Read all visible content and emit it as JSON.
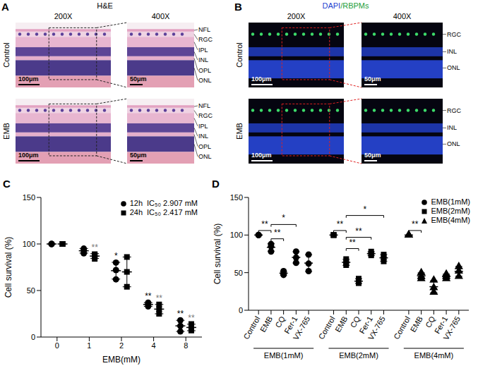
{
  "panels": [
    {
      "letter": "A",
      "title": "H&E",
      "magnifications": [
        "200X",
        "400X"
      ],
      "rows": [
        "Control",
        "EMB"
      ],
      "scale_bars": [
        "100μm",
        "50μm"
      ],
      "layers": [
        "NFL",
        "RGC",
        "IPL",
        "INL",
        "OPL",
        "ONL"
      ]
    },
    {
      "letter": "B",
      "title": "DAPI/RBPMs",
      "magnifications": [
        "200X",
        "400X"
      ],
      "rows": [
        "Control",
        "EMB"
      ],
      "scale_bars": [
        "100μm",
        "50μm"
      ],
      "layers": [
        "RGC",
        "INL",
        "ONL"
      ]
    }
  ],
  "chart_data": [
    {
      "letter": "C",
      "type": "scatter",
      "x_label": "EMB(mM)",
      "y_label": "Cell survival (%)",
      "categories": [
        "0",
        "1",
        "2",
        "4",
        "8"
      ],
      "ylim": [
        0,
        150
      ],
      "yticks": [
        0,
        50,
        100,
        150
      ],
      "legend": "top-right",
      "series": [
        {
          "name": "12h",
          "label": "IC₅₀ 2.907 mM",
          "marker": "circle",
          "color": "#000000",
          "values": [
            [
              100,
              100,
              100
            ],
            [
              95,
              90,
              93
            ],
            [
              80,
              72,
              62
            ],
            [
              37,
              35,
              33
            ],
            [
              18,
              12,
              6
            ]
          ],
          "mean": [
            100,
            92.7,
            71.3,
            35,
            12
          ],
          "sd": [
            0,
            2.5,
            9,
            2,
            6
          ]
        },
        {
          "name": "24h",
          "label": "IC₅₀ 2.417 mM",
          "marker": "square",
          "color": "#000000",
          "values": [
            [
              100,
              100,
              100
            ],
            [
              89,
              84,
              88
            ],
            [
              86,
              70,
              54
            ],
            [
              35,
              30,
              25
            ],
            [
              14,
              10,
              7
            ]
          ],
          "mean": [
            100,
            87,
            70,
            30,
            10.3
          ],
          "sd": [
            0,
            2.6,
            16,
            5,
            3.5
          ]
        }
      ],
      "significance": [
        {
          "category": "1",
          "series": "24h",
          "label": "**"
        },
        {
          "category": "2",
          "series": "12h",
          "label": "*"
        },
        {
          "category": "4",
          "series": "12h",
          "label": "**"
        },
        {
          "category": "4",
          "series": "24h",
          "label": "**"
        },
        {
          "category": "8",
          "series": "12h",
          "label": "**"
        },
        {
          "category": "8",
          "series": "24h",
          "label": "**"
        }
      ]
    },
    {
      "letter": "D",
      "type": "scatter",
      "y_label": "Cell survival (%)",
      "categories": [
        "Control",
        "EMB",
        "CQ",
        "Fer-1",
        "VX-765"
      ],
      "ylim": [
        0,
        150
      ],
      "yticks": [
        0,
        50,
        100,
        150
      ],
      "legend": "top-right",
      "series": [
        {
          "name": "EMB(1mM)",
          "marker": "circle",
          "color": "#000000",
          "values": [
            [
              100,
              100,
              100
            ],
            [
              88,
              85,
              78
            ],
            [
              52,
              49,
              47
            ],
            [
              78,
              70,
              63
            ],
            [
              74,
              62,
              52
            ]
          ],
          "mean": [
            100,
            83.7,
            49.3,
            70.3,
            62.7
          ],
          "sd": [
            0,
            5.1,
            2.5,
            7.5,
            11
          ]
        },
        {
          "name": "EMB(2mM)",
          "marker": "square",
          "color": "#000000",
          "values": [
            [
              100,
              100,
              100
            ],
            [
              68,
              63,
              60
            ],
            [
              42,
              38,
              36
            ],
            [
              78,
              75,
              73
            ],
            [
              74,
              70,
              65
            ]
          ],
          "mean": [
            100,
            63.7,
            38.7,
            75.3,
            69.7
          ],
          "sd": [
            0,
            4,
            3.1,
            2.5,
            4.5
          ]
        },
        {
          "name": "EMB(4mM)",
          "marker": "triangle",
          "color": "#000000",
          "values": [
            [
              100,
              100,
              100
            ],
            [
              50,
              45,
              42
            ],
            [
              40,
              30,
              24
            ],
            [
              48,
              45,
              42
            ],
            [
              58,
              52,
              45
            ]
          ],
          "mean": [
            100,
            45.7,
            31.3,
            45,
            51.7
          ],
          "sd": [
            0,
            4,
            8,
            3,
            6.5
          ]
        }
      ],
      "brackets": [
        {
          "series": "EMB(1mM)",
          "from": "Control",
          "to": "EMB",
          "y": 106,
          "label": "**"
        },
        {
          "series": "EMB(1mM)",
          "from": "EMB",
          "to": "CQ",
          "y": 95,
          "label": "**"
        },
        {
          "series": "EMB(1mM)",
          "from": "EMB",
          "to": "Fer-1",
          "y": 114,
          "label": "*"
        },
        {
          "series": "EMB(2mM)",
          "from": "Control",
          "to": "EMB",
          "y": 106,
          "label": "**"
        },
        {
          "series": "EMB(2mM)",
          "from": "EMB",
          "to": "CQ",
          "y": 82,
          "label": "**"
        },
        {
          "series": "EMB(2mM)",
          "from": "EMB",
          "to": "Fer-1",
          "y": 97,
          "label": "**"
        },
        {
          "series": "EMB(2mM)",
          "from": "EMB",
          "to": "VX-765",
          "y": 126,
          "label": "*"
        },
        {
          "series": "EMB(4mM)",
          "from": "Control",
          "to": "EMB",
          "y": 106,
          "label": "**"
        }
      ]
    }
  ]
}
